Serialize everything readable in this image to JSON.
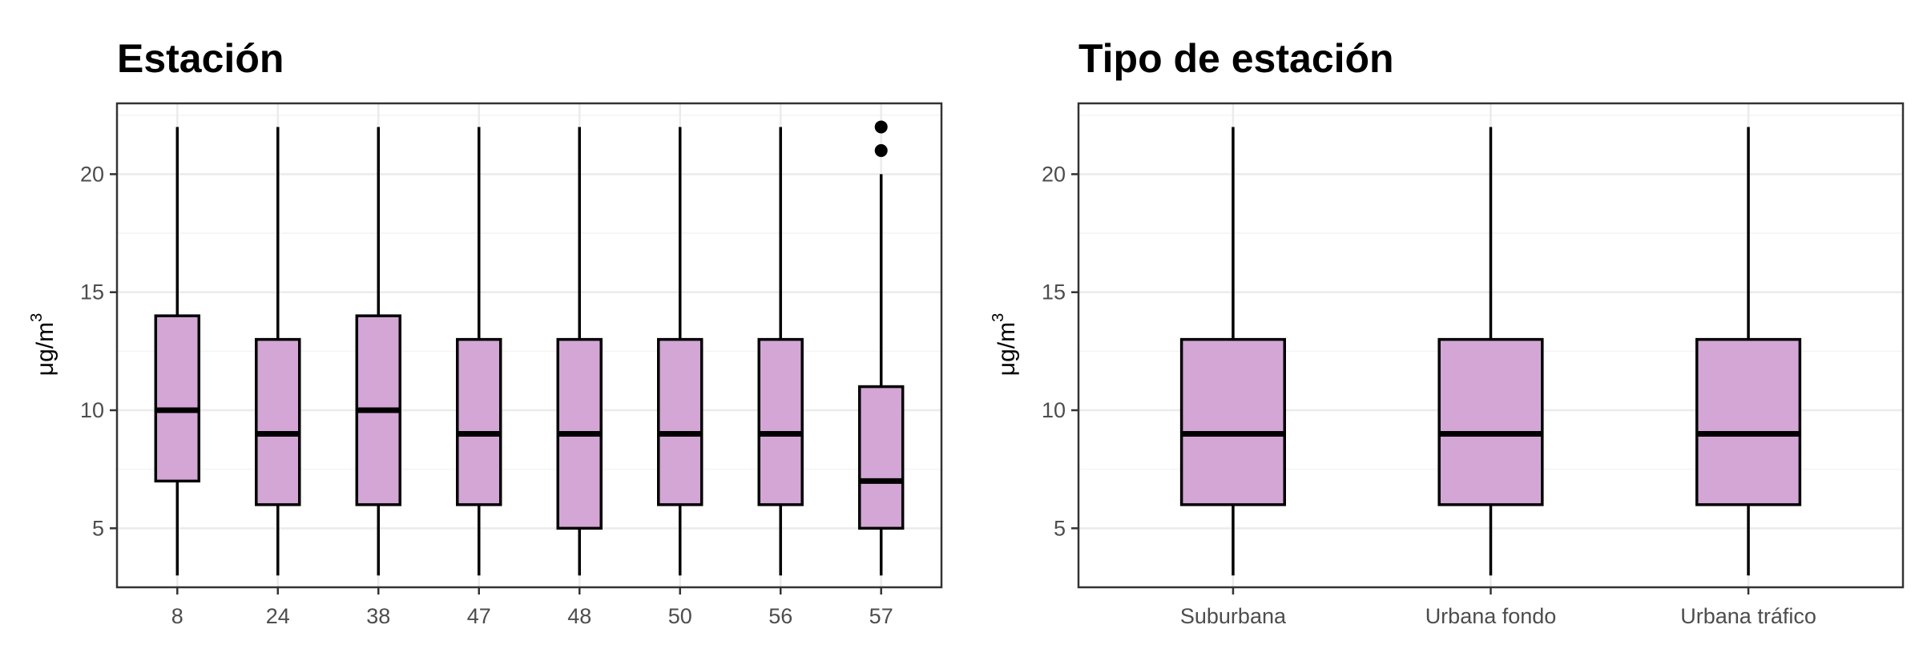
{
  "colors": {
    "box_fill": "#d3a6d5",
    "box_stroke": "#000000",
    "grid_major": "#ebebeb",
    "grid_minor": "#f4f4f4",
    "panel_border": "#333333",
    "tick_text": "#4d4d4d"
  },
  "chart_data": [
    {
      "type": "boxplot",
      "title": "Estación",
      "ylabel": "μg/m",
      "ylabel_sup": "3",
      "xlabel": "",
      "ylim": [
        2.5,
        23
      ],
      "yticks": [
        5,
        10,
        15,
        20
      ],
      "grid": true,
      "categories": [
        "8",
        "24",
        "38",
        "47",
        "48",
        "50",
        "56",
        "57"
      ],
      "boxes": [
        {
          "category": "8",
          "min": 3,
          "q1": 7,
          "median": 10,
          "q3": 14,
          "max": 22,
          "outliers": []
        },
        {
          "category": "24",
          "min": 3,
          "q1": 6,
          "median": 9,
          "q3": 13,
          "max": 22,
          "outliers": []
        },
        {
          "category": "38",
          "min": 3,
          "q1": 6,
          "median": 10,
          "q3": 14,
          "max": 22,
          "outliers": []
        },
        {
          "category": "47",
          "min": 3,
          "q1": 6,
          "median": 9,
          "q3": 13,
          "max": 22,
          "outliers": []
        },
        {
          "category": "48",
          "min": 3,
          "q1": 5,
          "median": 9,
          "q3": 13,
          "max": 22,
          "outliers": []
        },
        {
          "category": "50",
          "min": 3,
          "q1": 6,
          "median": 9,
          "q3": 13,
          "max": 22,
          "outliers": []
        },
        {
          "category": "56",
          "min": 3,
          "q1": 6,
          "median": 9,
          "q3": 13,
          "max": 22,
          "outliers": []
        },
        {
          "category": "57",
          "min": 3,
          "q1": 5,
          "median": 7,
          "q3": 11,
          "max": 20,
          "outliers": [
            21,
            22
          ]
        }
      ]
    },
    {
      "type": "boxplot",
      "title": "Tipo de estación",
      "ylabel": "μg/m",
      "ylabel_sup": "3",
      "xlabel": "",
      "ylim": [
        2.5,
        23
      ],
      "yticks": [
        5,
        10,
        15,
        20
      ],
      "grid": true,
      "categories": [
        "Suburbana",
        "Urbana fondo",
        "Urbana tráfico"
      ],
      "boxes": [
        {
          "category": "Suburbana",
          "min": 3,
          "q1": 6,
          "median": 9,
          "q3": 13,
          "max": 22,
          "outliers": []
        },
        {
          "category": "Urbana fondo",
          "min": 3,
          "q1": 6,
          "median": 9,
          "q3": 13,
          "max": 22,
          "outliers": []
        },
        {
          "category": "Urbana tráfico",
          "min": 3,
          "q1": 6,
          "median": 9,
          "q3": 13,
          "max": 22,
          "outliers": []
        }
      ]
    }
  ]
}
